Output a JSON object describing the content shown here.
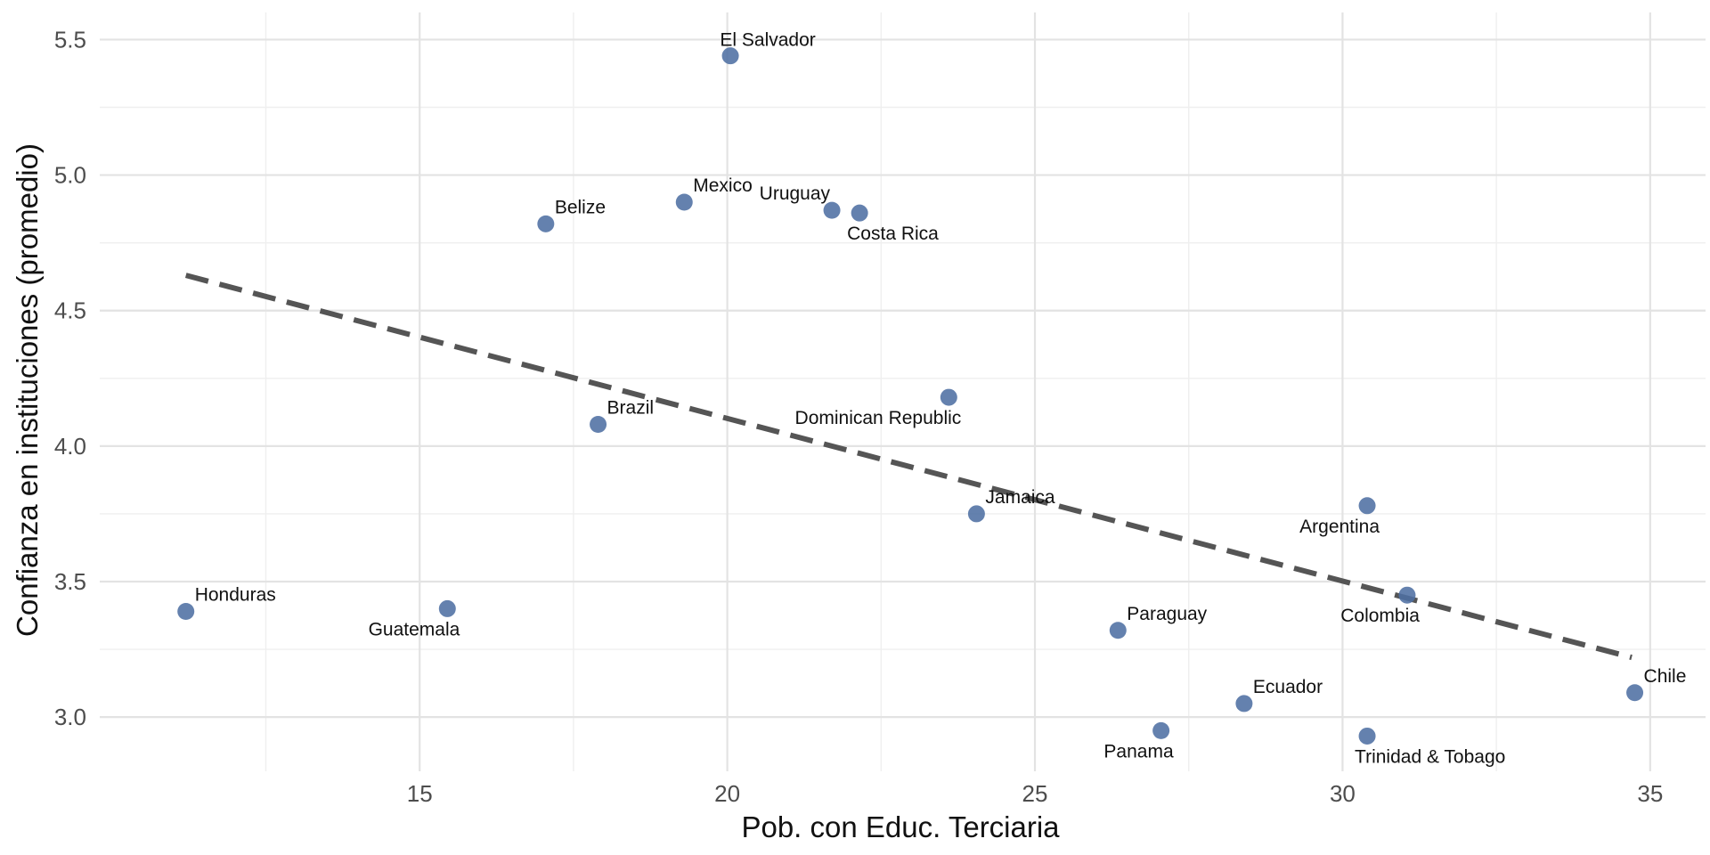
{
  "chart_data": {
    "type": "scatter",
    "title": "",
    "xlabel": "Pob. con Educ. Terciaria",
    "ylabel": "Confianza en instituciones (promedio)",
    "xlim": [
      9.8,
      35.9
    ],
    "ylim": [
      2.8,
      5.6
    ],
    "x_ticks": [
      15,
      20,
      25,
      30,
      35
    ],
    "x_tick_labels": [
      "15",
      "20",
      "25",
      "30",
      "35"
    ],
    "y_ticks": [
      3.0,
      3.5,
      4.0,
      4.5,
      5.0,
      5.5
    ],
    "y_tick_labels": [
      "3.0",
      "3.5",
      "4.0",
      "4.5",
      "5.0",
      "5.5"
    ],
    "grid": true,
    "legend": "none",
    "point_color": "#4f6fa3",
    "trend_line": {
      "style": "dashed",
      "color": "#555555",
      "x": [
        11.2,
        34.7
      ],
      "y": [
        4.63,
        3.22
      ]
    },
    "points": [
      {
        "label": "El Salvador",
        "x": 20.05,
        "y": 5.44,
        "label_pos": "above"
      },
      {
        "label": "Mexico",
        "x": 19.3,
        "y": 4.9,
        "label_pos": "above-right"
      },
      {
        "label": "Belize",
        "x": 17.05,
        "y": 4.82,
        "label_pos": "above-right"
      },
      {
        "label": "Uruguay",
        "x": 21.7,
        "y": 4.87,
        "label_pos": "above-left"
      },
      {
        "label": "Costa Rica",
        "x": 22.15,
        "y": 4.86,
        "label_pos": "below-right"
      },
      {
        "label": "Dominican Republic",
        "x": 23.6,
        "y": 4.18,
        "label_pos": "below-left"
      },
      {
        "label": "Brazil",
        "x": 17.9,
        "y": 4.08,
        "label_pos": "above-right"
      },
      {
        "label": "Jamaica",
        "x": 24.05,
        "y": 3.75,
        "label_pos": "above-right"
      },
      {
        "label": "Argentina",
        "x": 30.4,
        "y": 3.78,
        "label_pos": "below-left"
      },
      {
        "label": "Colombia",
        "x": 31.05,
        "y": 3.45,
        "label_pos": "below-left"
      },
      {
        "label": "Honduras",
        "x": 11.2,
        "y": 3.39,
        "label_pos": "above-right"
      },
      {
        "label": "Guatemala",
        "x": 15.45,
        "y": 3.4,
        "label_pos": "below-left"
      },
      {
        "label": "Paraguay",
        "x": 26.35,
        "y": 3.32,
        "label_pos": "above-right"
      },
      {
        "label": "Ecuador",
        "x": 28.4,
        "y": 3.05,
        "label_pos": "above-right"
      },
      {
        "label": "Panama",
        "x": 27.05,
        "y": 2.95,
        "label_pos": "below-left"
      },
      {
        "label": "Trinidad & Tobago",
        "x": 30.4,
        "y": 2.93,
        "label_pos": "below-right"
      },
      {
        "label": "Chile",
        "x": 34.75,
        "y": 3.09,
        "label_pos": "above-right"
      }
    ]
  }
}
